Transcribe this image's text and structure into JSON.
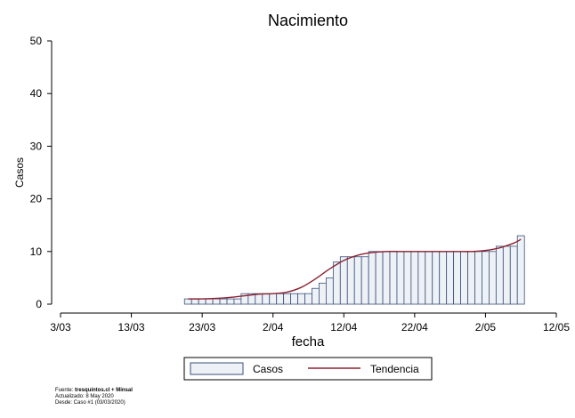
{
  "chart_data": {
    "type": "bar",
    "title": "Nacimiento",
    "xlabel": "fecha",
    "ylabel": "Casos",
    "ylim": [
      0,
      50
    ],
    "yticks": [
      0,
      10,
      20,
      30,
      40,
      50
    ],
    "xlim": [
      "2020-03-03",
      "2020-05-12"
    ],
    "xticks": [
      "3/03",
      "13/03",
      "23/03",
      "2/04",
      "12/04",
      "22/04",
      "2/05",
      "12/05"
    ],
    "grid": false,
    "legend_position": "bottom",
    "series": [
      {
        "name": "Casos",
        "type": "bar",
        "color": "#eef2f6",
        "edge_color": "#3a4f7a",
        "x": [
          "2020-03-21",
          "2020-03-22",
          "2020-03-23",
          "2020-03-24",
          "2020-03-25",
          "2020-03-26",
          "2020-03-27",
          "2020-03-28",
          "2020-03-29",
          "2020-03-30",
          "2020-03-31",
          "2020-04-01",
          "2020-04-02",
          "2020-04-03",
          "2020-04-04",
          "2020-04-05",
          "2020-04-06",
          "2020-04-07",
          "2020-04-08",
          "2020-04-09",
          "2020-04-10",
          "2020-04-11",
          "2020-04-12",
          "2020-04-13",
          "2020-04-14",
          "2020-04-15",
          "2020-04-16",
          "2020-04-17",
          "2020-04-18",
          "2020-04-19",
          "2020-04-20",
          "2020-04-21",
          "2020-04-22",
          "2020-04-23",
          "2020-04-24",
          "2020-04-25",
          "2020-04-26",
          "2020-04-27",
          "2020-04-28",
          "2020-04-29",
          "2020-04-30",
          "2020-05-01",
          "2020-05-02",
          "2020-05-03",
          "2020-05-04",
          "2020-05-05",
          "2020-05-06",
          "2020-05-07"
        ],
        "values": [
          1,
          1,
          1,
          1,
          1,
          1,
          1,
          1,
          2,
          2,
          2,
          2,
          2,
          2,
          2,
          2,
          2,
          2,
          3,
          4,
          5,
          8,
          9,
          9,
          9,
          9,
          10,
          10,
          10,
          10,
          10,
          10,
          10,
          10,
          10,
          10,
          10,
          10,
          10,
          10,
          10,
          10,
          10,
          10,
          11,
          11,
          11,
          13
        ]
      },
      {
        "name": "Tendencia",
        "type": "line",
        "color": "#8b2232",
        "x": [
          "2020-03-21",
          "2020-03-23",
          "2020-03-25",
          "2020-03-27",
          "2020-03-29",
          "2020-03-31",
          "2020-04-02",
          "2020-04-04",
          "2020-04-06",
          "2020-04-08",
          "2020-04-10",
          "2020-04-12",
          "2020-04-14",
          "2020-04-16",
          "2020-04-18",
          "2020-04-20",
          "2020-04-22",
          "2020-04-24",
          "2020-04-26",
          "2020-04-28",
          "2020-04-30",
          "2020-05-02",
          "2020-05-04",
          "2020-05-06",
          "2020-05-07"
        ],
        "values": [
          1.0,
          1.0,
          1.1,
          1.3,
          1.6,
          1.9,
          2.0,
          2.3,
          3.2,
          4.8,
          6.7,
          8.3,
          9.3,
          9.8,
          10.0,
          10.0,
          10.0,
          10.0,
          10.0,
          10.0,
          10.0,
          10.2,
          10.7,
          11.6,
          12.3
        ]
      }
    ],
    "footnote": {
      "line1_prefix": "Fuente: ",
      "line1_bold": "tresquintos.cl + Minsal",
      "line2": "Actualizado: 8 May 2020",
      "line3": "Desde: Caso #1  (03/03/2020)"
    }
  }
}
